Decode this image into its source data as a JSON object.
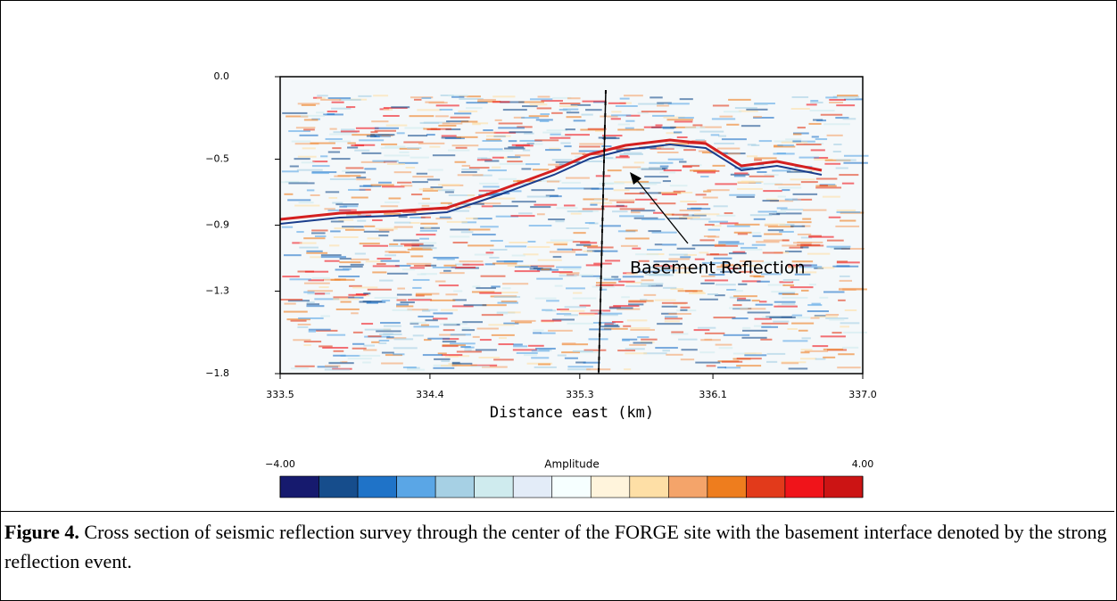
{
  "chart_data": {
    "type": "image",
    "xlabel": "Distance east (km)",
    "xlim": [
      333.5,
      337.0
    ],
    "xticks": [
      333.5,
      334.4,
      335.3,
      336.1,
      {
        "value": 337.0,
        "label": "337.0"
      }
    ],
    "ylim": [
      -1.8,
      0.0
    ],
    "yticks": [
      {
        "value": 0.0,
        "label": "0.0"
      },
      {
        "value": -0.5,
        "label": "−0.5"
      },
      {
        "value": -0.9,
        "label": "−0.9"
      },
      {
        "value": -1.3,
        "label": "−1.3"
      },
      {
        "value": -1.8,
        "label": "−1.8"
      }
    ],
    "annotation": "Basement Reflection",
    "colorbar": {
      "label": "Amplitude",
      "ticks": [
        {
          "value": -4.0,
          "label": "−4.00"
        },
        {
          "value": 4.0,
          "label": "4.00"
        }
      ],
      "colors": [
        "#161a6e",
        "#164d8c",
        "#1f73c8",
        "#5aa6e6",
        "#a6d0e4",
        "#cfebee",
        "#e3ecf8",
        "#f6ffff",
        "#fff4dc",
        "#fedfa6",
        "#f4a46a",
        "#ee7d1e",
        "#e23a1b",
        "#f0141a",
        "#cc1414"
      ]
    }
  },
  "caption": {
    "label": "Figure 4.",
    "text": " Cross section of seismic reflection survey through the center of the FORGE site with the basement interface denoted by the strong reflection event."
  }
}
